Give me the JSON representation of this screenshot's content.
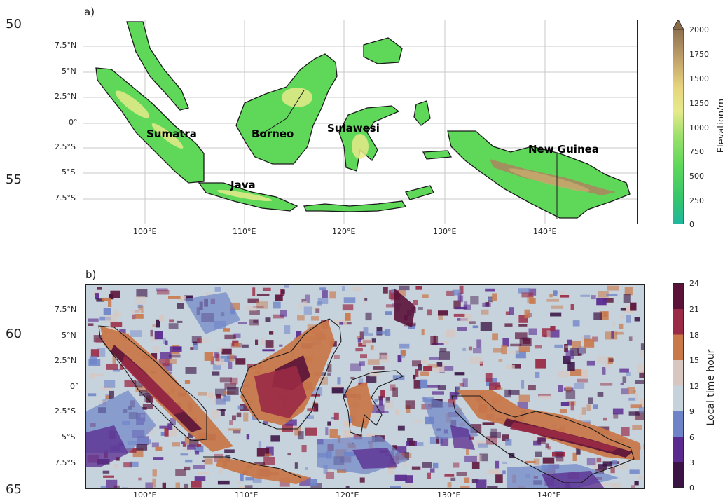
{
  "line_numbers": [
    "50",
    "55",
    "60",
    "65"
  ],
  "panel_a": {
    "letter": "a)",
    "x_ticks": [
      "100°E",
      "110°E",
      "120°E",
      "130°E",
      "140°E"
    ],
    "y_ticks": [
      "7.5°N",
      "5°N",
      "2.5°N",
      "0°",
      "2.5°S",
      "5°S",
      "7.5°S"
    ],
    "island_labels": [
      "Sumatra",
      "Borneo",
      "Sulawesi",
      "Java",
      "New Guinea"
    ],
    "colorbar": {
      "label": "Elevation/m",
      "ticks": [
        "2000",
        "1750",
        "1500",
        "1250",
        "1000",
        "750",
        "500",
        "250",
        "0"
      ],
      "colors": [
        "#1fb7a0",
        "#33c46e",
        "#5fd85a",
        "#9be06a",
        "#e6ea8a",
        "#e7d57e",
        "#c9ab6e",
        "#a98a5e",
        "#8f7050"
      ],
      "extend_color": "#8a6a48"
    },
    "colors": {
      "land_low": "#5fd85a",
      "land_mid": "#e6ea8a",
      "land_high": "#a88a5e",
      "ocean": "#ffffff",
      "grid": "#c8c8c8",
      "coast": "#1a1a1a"
    }
  },
  "panel_b": {
    "letter": "b)",
    "x_ticks": [
      "100°E",
      "110°E",
      "120°E",
      "130°E",
      "140°E"
    ],
    "y_ticks": [
      "7.5°N",
      "5°N",
      "2.5°N",
      "0°",
      "2.5°S",
      "5°S",
      "7.5°S"
    ],
    "colorbar": {
      "label": "Local time hour",
      "ticks": [
        "24",
        "21",
        "18",
        "15",
        "12",
        "9",
        "6",
        "3",
        "0"
      ],
      "colors": [
        "#3b1445",
        "#5a2a8f",
        "#6f84c8",
        "#c6d2dc",
        "#d8c7c0",
        "#c9784a",
        "#9a2a45",
        "#5a1238"
      ]
    }
  }
}
